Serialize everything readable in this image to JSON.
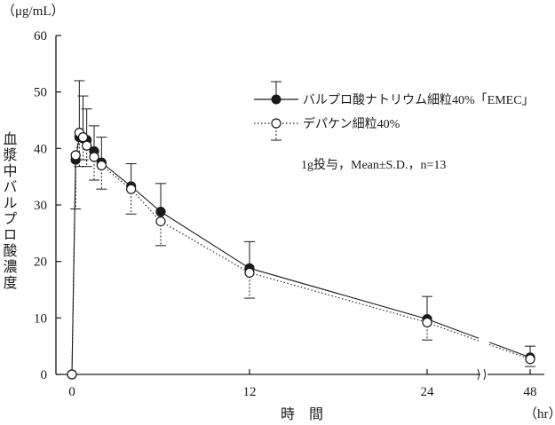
{
  "chart_data": {
    "type": "line",
    "ylabel_unit": "（μg/mL）",
    "ylabel": "血漿中バルプロ酸濃度",
    "xlabel": "時　間",
    "xlabel_unit": "（hr）",
    "ylim": [
      0,
      60
    ],
    "y_ticks": [
      0,
      10,
      20,
      30,
      40,
      50,
      60
    ],
    "x_ticks": [
      0,
      12,
      24,
      48
    ],
    "x_tick_labels": [
      "0",
      "12",
      "24",
      "48"
    ],
    "x_axis_break": true,
    "grid": false,
    "legend_position": "top-right",
    "annotation": "1g投与，Mean±S.D.，n=13",
    "series": [
      {
        "name": "バルプロ酸ナトリウム細粒40%「EMEC」",
        "marker": "filled-circle",
        "line_style": "solid",
        "color": "#1a1a1a",
        "error_direction": "up",
        "x": [
          0,
          0.25,
          0.5,
          0.75,
          1,
          1.5,
          2,
          4,
          6,
          12,
          24,
          48
        ],
        "y": [
          0,
          38,
          42,
          41.8,
          41.5,
          39.5,
          37.5,
          33.3,
          28.8,
          18.8,
          9.8,
          3
        ],
        "sd": [
          0,
          0,
          10,
          7.5,
          5.5,
          4.5,
          4.5,
          4,
          5,
          4.7,
          4,
          2
        ]
      },
      {
        "name": "デパケン細粒40%",
        "marker": "open-circle",
        "line_style": "dotted",
        "color": "#1a1a1a",
        "error_direction": "down",
        "x": [
          0,
          0.25,
          0.5,
          0.75,
          1,
          1.5,
          2,
          4,
          6,
          12,
          24,
          48
        ],
        "y": [
          0,
          38.8,
          42.8,
          42,
          40.5,
          38.5,
          37,
          32.8,
          27.1,
          18,
          9.2,
          2.7
        ],
        "sd": [
          0,
          9.5,
          6,
          4,
          3.7,
          4.1,
          4.2,
          4.4,
          4.3,
          4.5,
          3.1,
          1.3
        ]
      }
    ]
  }
}
